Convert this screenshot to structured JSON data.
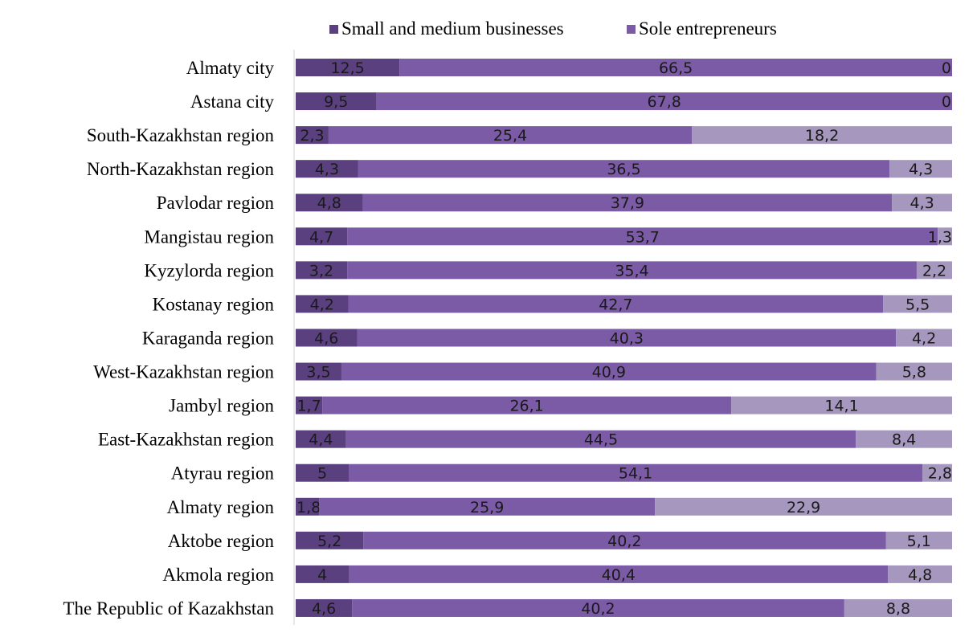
{
  "chart_data": {
    "type": "bar",
    "orientation": "horizontal",
    "stacked": true,
    "percent_stacked": true,
    "title": "",
    "xlabel": "",
    "ylabel": "",
    "legend": {
      "position": "top",
      "entries": [
        "Small and medium businesses",
        "Sole entrepreneurs"
      ]
    },
    "categories": [
      "Almaty city",
      "Astana city",
      "South-Kazakhstan region",
      "North-Kazakhstan region",
      "Pavlodar region",
      "Mangistau region",
      "Kyzylorda region",
      "Kostanay region",
      "Karaganda region",
      "West-Kazakhstan region",
      "Jambyl region",
      "East-Kazakhstan region",
      "Atyrau region",
      "Almaty region",
      "Aktobe region",
      "Akmola region",
      "The Republic of Kazakhstan"
    ],
    "series": [
      {
        "name": "",
        "color": "#5b4080",
        "values": [
          12.5,
          9.5,
          2.3,
          4.3,
          4.8,
          4.7,
          3.2,
          4.2,
          4.6,
          3.5,
          1.7,
          4.4,
          5,
          1.8,
          5.2,
          4,
          4.6
        ],
        "labels": [
          "12,5",
          "9,5",
          "2,3",
          "4,3",
          "4,8",
          "4,7",
          "3,2",
          "4,2",
          "4,6",
          "3,5",
          "1,7",
          "4,4",
          "5",
          "1,8",
          "5,2",
          "4",
          "4,6"
        ]
      },
      {
        "name": "",
        "color": "#7b5aa6",
        "values": [
          66.5,
          67.8,
          25.4,
          36.5,
          37.9,
          53.7,
          35.4,
          42.7,
          40.3,
          40.9,
          26.1,
          44.5,
          54.1,
          25.9,
          40.2,
          40.4,
          40.2
        ],
        "labels": [
          "66,5",
          "67,8",
          "25,4",
          "36,5",
          "37,9",
          "53,7",
          "35,4",
          "42,7",
          "40,3",
          "40,9",
          "26,1",
          "44,5",
          "54,1",
          "25,9",
          "40,2",
          "40,4",
          "40,2"
        ]
      },
      {
        "name": "",
        "color": "#a597bd",
        "values": [
          0,
          0,
          18.2,
          4.3,
          4.3,
          1.3,
          2.2,
          5.5,
          4.2,
          5.8,
          14.1,
          8.4,
          2.8,
          22.9,
          5.1,
          4.8,
          8.8
        ],
        "labels": [
          "0",
          "0",
          "18,2",
          "4,3",
          "4,3",
          "1,3",
          "2,2",
          "5,5",
          "4,2",
          "5,8",
          "14,1",
          "8,4",
          "2,8",
          "22,9",
          "5,1",
          "4,8",
          "8,8"
        ]
      }
    ],
    "legend_colors": [
      "#5b4080",
      "#7b5aa6"
    ],
    "grid": false
  }
}
